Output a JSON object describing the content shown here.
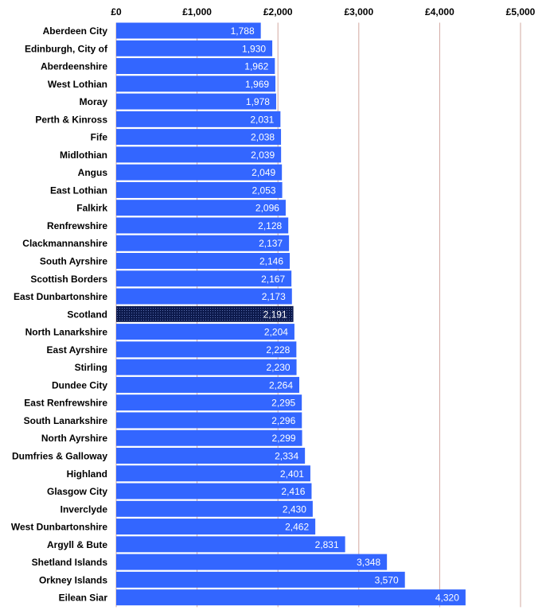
{
  "chart_data": {
    "type": "bar",
    "orientation": "horizontal",
    "title": "",
    "xlabel": "",
    "ylabel": "",
    "xlim": [
      0,
      5000
    ],
    "x_ticks": [
      "£0",
      "£1,000",
      "£2,000",
      "£3,000",
      "£4,000",
      "£5,000"
    ],
    "x_tick_values": [
      0,
      1000,
      2000,
      3000,
      4000,
      5000
    ],
    "grid": true,
    "legend": "none",
    "categories": [
      "Aberdeen City",
      "Edinburgh, City of",
      "Aberdeenshire",
      "West Lothian",
      "Moray",
      "Perth & Kinross",
      "Fife",
      "Midlothian",
      "Angus",
      "East Lothian",
      "Falkirk",
      "Renfrewshire",
      "Clackmannanshire",
      "South Ayrshire",
      "Scottish Borders",
      "East Dunbartonshire",
      "Scotland",
      "North Lanarkshire",
      "East Ayrshire",
      "Stirling",
      "Dundee City",
      "East Renfrewshire",
      "South Lanarkshire",
      "North Ayrshire",
      "Dumfries & Galloway",
      "Highland",
      "Glasgow City",
      "Inverclyde",
      "West Dunbartonshire",
      "Argyll & Bute",
      "Shetland Islands",
      "Orkney Islands",
      "Eilean Siar"
    ],
    "values": [
      1788,
      1930,
      1962,
      1969,
      1978,
      2031,
      2038,
      2039,
      2049,
      2053,
      2096,
      2128,
      2137,
      2146,
      2167,
      2173,
      2191,
      2204,
      2228,
      2230,
      2264,
      2295,
      2296,
      2299,
      2334,
      2401,
      2416,
      2430,
      2462,
      2831,
      3348,
      3570,
      4320
    ],
    "value_labels": [
      "1,788",
      "1,930",
      "1,962",
      "1,969",
      "1,978",
      "2,031",
      "2,038",
      "2,039",
      "2,049",
      "2,053",
      "2,096",
      "2,128",
      "2,137",
      "2,146",
      "2,167",
      "2,173",
      "2,191",
      "2,204",
      "2,228",
      "2,230",
      "2,264",
      "2,295",
      "2,296",
      "2,299",
      "2,334",
      "2,401",
      "2,416",
      "2,430",
      "2,462",
      "2,831",
      "3,348",
      "3,570",
      "4,320"
    ],
    "highlight_category": "Scotland",
    "colors": {
      "bar": "#3366ff",
      "highlight_bar": "#0d1a4d",
      "gridline": "#d2a8a0",
      "value_text": "#ffffff",
      "label_text": "#000000"
    }
  }
}
